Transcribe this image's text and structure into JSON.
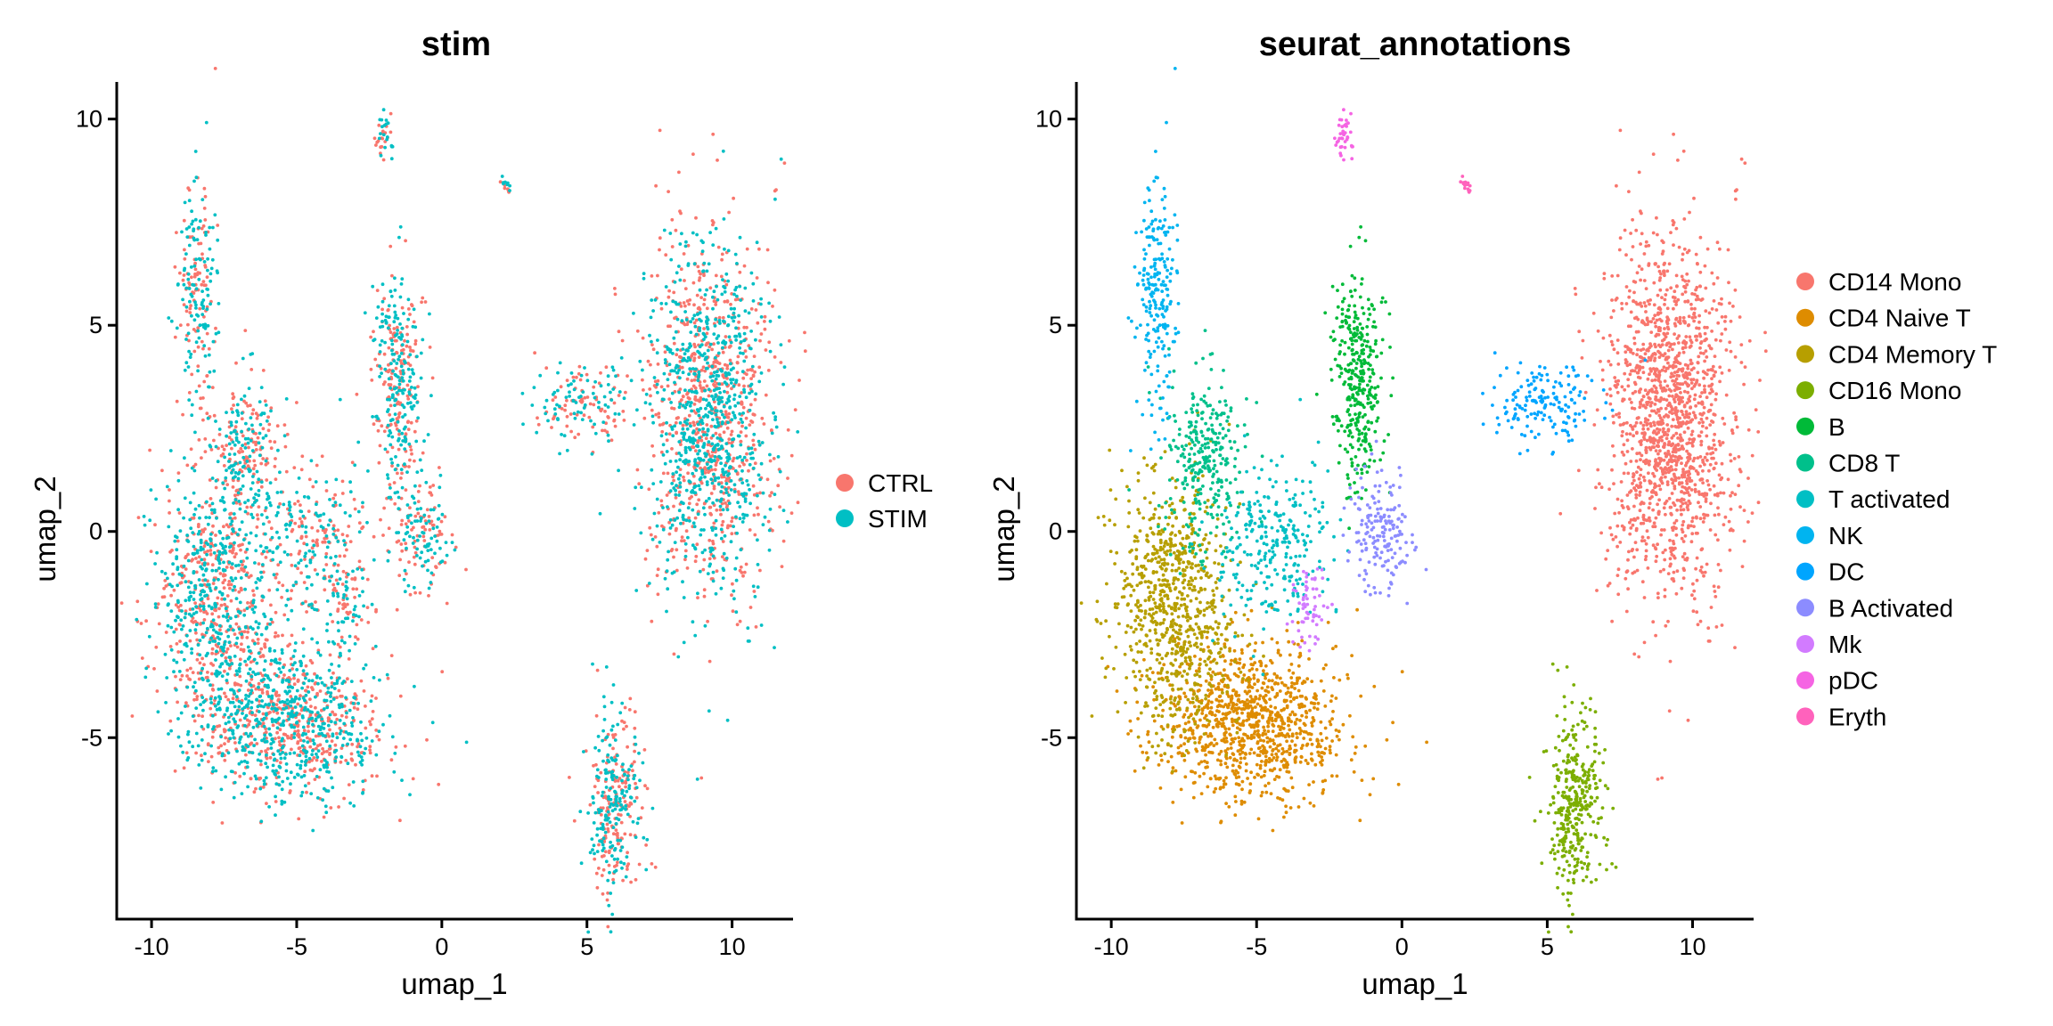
{
  "chart_data": [
    {
      "type": "scatter",
      "title": "stim",
      "xlabel": "umap_1",
      "ylabel": "umap_2",
      "xlim": [
        -11.2,
        12.1
      ],
      "ylim": [
        -9.4,
        10.9
      ],
      "xticks": [
        -10,
        -5,
        0,
        5,
        10
      ],
      "yticks": [
        -5,
        0,
        5,
        10
      ],
      "xtick_labels": [
        "-10",
        "-5",
        "0",
        "5",
        "10"
      ],
      "ytick_labels": [
        "-5",
        "0",
        "5",
        "10"
      ],
      "grid": false,
      "legend_position": "right",
      "series": [
        {
          "name": "CTRL",
          "color": "#F8766D"
        },
        {
          "name": "STIM",
          "color": "#00BFC4"
        }
      ]
    },
    {
      "type": "scatter",
      "title": "seurat_annotations",
      "xlabel": "umap_1",
      "ylabel": "umap_2",
      "xlim": [
        -11.2,
        12.1
      ],
      "ylim": [
        -9.4,
        10.9
      ],
      "xticks": [
        -10,
        -5,
        0,
        5,
        10
      ],
      "yticks": [
        -5,
        0,
        5,
        10
      ],
      "xtick_labels": [
        "-10",
        "-5",
        "0",
        "5",
        "10"
      ],
      "ytick_labels": [
        "-5",
        "0",
        "5",
        "10"
      ],
      "grid": false,
      "legend_position": "right",
      "series": [
        {
          "name": "CD14 Mono",
          "color": "#F8766D"
        },
        {
          "name": "CD4 Naive T",
          "color": "#DE8C00"
        },
        {
          "name": "CD4 Memory T",
          "color": "#B79F00"
        },
        {
          "name": "CD16 Mono",
          "color": "#7CAE00"
        },
        {
          "name": "B",
          "color": "#00BA38"
        },
        {
          "name": "CD8 T",
          "color": "#00C08B"
        },
        {
          "name": "T activated",
          "color": "#00BFC4"
        },
        {
          "name": "NK",
          "color": "#00B4F0"
        },
        {
          "name": "DC",
          "color": "#00A5FF"
        },
        {
          "name": "B Activated",
          "color": "#8C8CFF"
        },
        {
          "name": "Mk",
          "color": "#D27BFF"
        },
        {
          "name": "pDC",
          "color": "#F564E3"
        },
        {
          "name": "Eryth",
          "color": "#FF62BC"
        }
      ],
      "clusters": [
        {
          "label": "CD14 Mono",
          "cx": 9.2,
          "cy": 2.8,
          "sx": 1.05,
          "sy": 2.2,
          "n": 1500
        },
        {
          "label": "CD4 Naive T",
          "cx": -5.2,
          "cy": -4.6,
          "sx": 1.6,
          "sy": 0.95,
          "n": 1000
        },
        {
          "label": "CD4 Memory T",
          "cx": -7.9,
          "cy": -1.9,
          "sx": 1.0,
          "sy": 1.6,
          "n": 800
        },
        {
          "label": "CD16 Mono",
          "cx": 6.0,
          "cy": -6.5,
          "sx": 0.45,
          "sy": 1.1,
          "n": 350
        },
        {
          "label": "B",
          "cx": -1.5,
          "cy": 3.7,
          "sx": 0.4,
          "sy": 1.2,
          "n": 350
        },
        {
          "label": "CD8 T",
          "cx": -6.8,
          "cy": 1.8,
          "sx": 0.7,
          "sy": 1.1,
          "n": 300
        },
        {
          "label": "T activated",
          "cx": -4.3,
          "cy": -0.4,
          "sx": 0.9,
          "sy": 1.0,
          "n": 280
        },
        {
          "label": "NK",
          "cx": -8.4,
          "cy": 5.6,
          "sx": 0.35,
          "sy": 1.4,
          "n": 220
        },
        {
          "label": "DC",
          "cx": 4.9,
          "cy": 3.1,
          "sx": 0.9,
          "sy": 0.5,
          "n": 160
        },
        {
          "label": "B Activated",
          "cx": -0.8,
          "cy": -0.2,
          "sx": 0.55,
          "sy": 0.8,
          "n": 170
        },
        {
          "label": "Mk",
          "cx": -3.2,
          "cy": -1.8,
          "sx": 0.3,
          "sy": 0.5,
          "n": 60
        },
        {
          "label": "pDC",
          "cx": -2.0,
          "cy": 9.6,
          "sx": 0.15,
          "sy": 0.25,
          "n": 40
        },
        {
          "label": "Eryth",
          "cx": 2.2,
          "cy": 8.4,
          "sx": 0.1,
          "sy": 0.1,
          "n": 15
        }
      ]
    }
  ]
}
